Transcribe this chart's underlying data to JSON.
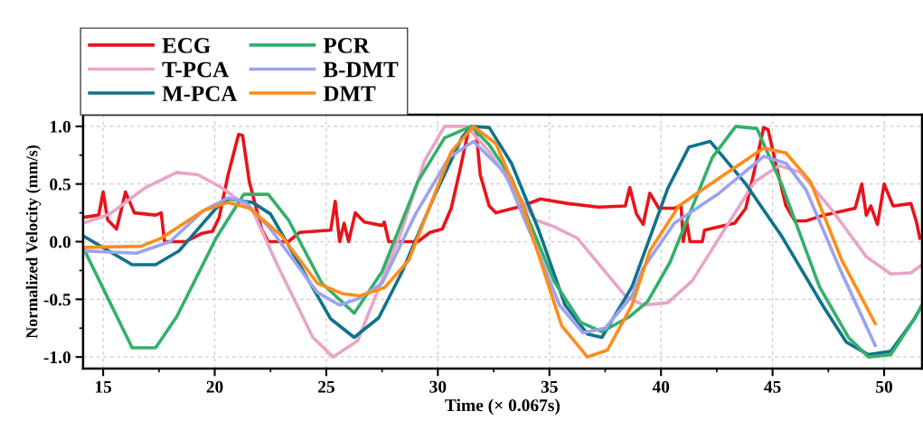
{
  "chart_data": {
    "type": "line",
    "xlabel": "Time (× 0.067s)",
    "ylabel": "Normalized Velocity (mm/s)",
    "xlim": [
      14.1,
      51.7
    ],
    "ylim": [
      -1.1,
      1.1
    ],
    "xticks": [
      15,
      20,
      25,
      30,
      35,
      40,
      45,
      50
    ],
    "yticks": [
      {
        "value": -1,
        "label": "-1.0"
      },
      {
        "value": -0.5,
        "label": "-0.5"
      },
      {
        "value": 0,
        "label": "0.0"
      },
      {
        "value": 0.5,
        "label": "0.5"
      },
      {
        "value": 1,
        "label": "1.0"
      }
    ],
    "grid": true,
    "legend": "top left",
    "line_style": "solid",
    "marker": "none",
    "series": [
      {
        "name": "ECG",
        "color": "#e8141b",
        "x": [
          14.1,
          14.8,
          15.0,
          15.2,
          15.6,
          16.0,
          16.4,
          17.35,
          17.6,
          17.75,
          18.7,
          19.4,
          19.9,
          20.2,
          20.6,
          21.07,
          21.25,
          21.55,
          22.1,
          22.4,
          23.3,
          23.8,
          25.2,
          25.4,
          25.6,
          25.8,
          26.0,
          26.3,
          26.7,
          27.5,
          27.6,
          27.8,
          29.1,
          29.65,
          30.2,
          30.6,
          31.0,
          31.4,
          31.7,
          31.9,
          32.3,
          32.6,
          33.8,
          34.6,
          35.85,
          37.2,
          38.4,
          38.6,
          38.9,
          39.2,
          39.5,
          39.9,
          40.6,
          40.9,
          41.0,
          41.15,
          41.3,
          41.85,
          41.95,
          43.3,
          43.8,
          44.2,
          44.6,
          44.8,
          45.2,
          45.6,
          46.0,
          46.5,
          47.3,
          48.7,
          49.0,
          49.2,
          49.4,
          49.7,
          50.0,
          50.4,
          51.2,
          51.45,
          51.6
        ],
        "values": [
          0.21,
          0.23,
          0.43,
          0.19,
          0.11,
          0.43,
          0.25,
          0.23,
          0.25,
          0.0,
          0.0,
          0.07,
          0.09,
          0.21,
          0.58,
          0.93,
          0.92,
          0.52,
          0.11,
          0.0,
          0.0,
          0.08,
          0.1,
          0.35,
          0.0,
          0.16,
          0.0,
          0.25,
          0.17,
          0.14,
          0.17,
          0.0,
          0.0,
          0.08,
          0.11,
          0.29,
          0.63,
          0.99,
          0.99,
          0.58,
          0.31,
          0.25,
          0.31,
          0.37,
          0.33,
          0.3,
          0.31,
          0.47,
          0.24,
          0.15,
          0.42,
          0.29,
          0.29,
          0.31,
          0.0,
          0.18,
          0.0,
          0.0,
          0.1,
          0.16,
          0.29,
          0.63,
          0.99,
          0.97,
          0.63,
          0.31,
          0.18,
          0.18,
          0.23,
          0.29,
          0.5,
          0.23,
          0.31,
          0.15,
          0.5,
          0.31,
          0.33,
          0.17,
          0.03
        ]
      },
      {
        "name": "T-PCA",
        "color": "#e8a5c8",
        "x": [
          14.1,
          15.3,
          16.9,
          18.3,
          19.25,
          20.3,
          21.7,
          22.8,
          24.4,
          25.3,
          26.4,
          28.3,
          29.4,
          30.3,
          31.3,
          32.3,
          34.35,
          35.2,
          36.25,
          38.4,
          39.2,
          40.3,
          41.4,
          42.6,
          44.2,
          45.3,
          46.25,
          47.6,
          49.2,
          50.3,
          51.2,
          51.7
        ],
        "values": [
          0.16,
          0.24,
          0.47,
          0.6,
          0.58,
          0.47,
          0.27,
          -0.2,
          -0.83,
          -1.0,
          -0.86,
          0.05,
          0.7,
          1.0,
          1.0,
          0.78,
          0.19,
          0.13,
          0.03,
          -0.47,
          -0.55,
          -0.53,
          -0.34,
          0.03,
          0.52,
          0.66,
          0.6,
          0.29,
          -0.13,
          -0.28,
          -0.27,
          -0.2
        ]
      },
      {
        "name": "M-PCA",
        "color": "#11728c",
        "x": [
          14.1,
          16.3,
          17.35,
          18.4,
          20.06,
          20.6,
          21.7,
          22.5,
          25.2,
          26.25,
          27.35,
          28.4,
          29.9,
          31.1,
          31.5,
          32.3,
          33.3,
          34.5,
          35.7,
          36.7,
          37.35,
          38.7,
          40.3,
          41.25,
          42.2,
          43.8,
          45.4,
          47.3,
          48.3,
          49.3,
          50.3,
          51.35,
          51.7
        ],
        "values": [
          0.05,
          -0.2,
          -0.2,
          -0.08,
          0.29,
          0.37,
          0.34,
          0.24,
          -0.67,
          -0.83,
          -0.66,
          -0.26,
          0.42,
          0.91,
          1.0,
          0.99,
          0.68,
          0.11,
          -0.55,
          -0.8,
          -0.83,
          -0.39,
          0.46,
          0.82,
          0.87,
          0.5,
          0.05,
          -0.57,
          -0.87,
          -0.98,
          -0.95,
          -0.67,
          -0.55
        ]
      },
      {
        "name": "PCR",
        "color": "#33b06a",
        "x": [
          14.1,
          16.3,
          17.35,
          18.3,
          20.06,
          21.3,
          22.4,
          23.3,
          24.8,
          26.25,
          27.5,
          29.1,
          30.3,
          31.5,
          32.3,
          33.3,
          35.2,
          36.4,
          37.35,
          38.6,
          39.4,
          40.4,
          42.3,
          43.35,
          44.3,
          45.4,
          47.1,
          48.4,
          49.3,
          50.3,
          51.35,
          51.7
        ],
        "values": [
          -0.05,
          -0.92,
          -0.92,
          -0.65,
          0.03,
          0.41,
          0.41,
          0.19,
          -0.36,
          -0.62,
          -0.26,
          0.52,
          0.9,
          1.0,
          0.84,
          0.55,
          -0.34,
          -0.7,
          -0.78,
          -0.65,
          -0.52,
          -0.18,
          0.73,
          1.0,
          0.98,
          0.5,
          -0.39,
          -0.83,
          -1.0,
          -0.98,
          -0.67,
          -0.55
        ]
      },
      {
        "name": "B-DMT",
        "color": "#9aa3f0",
        "x": [
          14.1,
          16.5,
          18.0,
          19.5,
          20.6,
          21.4,
          22.5,
          24.6,
          25.6,
          26.5,
          27.5,
          29.0,
          30.5,
          31.6,
          33.0,
          34.35,
          35.45,
          36.5,
          37.5,
          38.7,
          39.2,
          40.6,
          42.6,
          44.6,
          45.6,
          46.5,
          48.0,
          49.6
        ],
        "values": [
          -0.08,
          -0.1,
          0.0,
          0.27,
          0.38,
          0.34,
          0.11,
          -0.44,
          -0.55,
          -0.49,
          -0.36,
          0.24,
          0.73,
          0.87,
          0.6,
          -0.02,
          -0.55,
          -0.79,
          -0.75,
          -0.47,
          -0.23,
          0.16,
          0.42,
          0.74,
          0.68,
          0.45,
          -0.23,
          -0.9
        ]
      },
      {
        "name": "DMT",
        "color": "#ff8c1a",
        "x": [
          14.1,
          16.7,
          17.6,
          19.5,
          20.6,
          21.55,
          23.0,
          24.6,
          25.7,
          26.5,
          27.6,
          28.7,
          30.6,
          31.6,
          32.6,
          33.8,
          35.55,
          36.7,
          37.6,
          38.7,
          39.5,
          40.8,
          42.6,
          44.6,
          45.6,
          46.7,
          48.1,
          49.6
        ],
        "values": [
          -0.05,
          -0.04,
          0.03,
          0.27,
          0.34,
          0.29,
          0.05,
          -0.36,
          -0.45,
          -0.47,
          -0.4,
          -0.16,
          0.78,
          1.0,
          0.85,
          0.31,
          -0.73,
          -1.0,
          -0.94,
          -0.55,
          -0.08,
          0.31,
          0.55,
          0.81,
          0.77,
          0.52,
          -0.16,
          -0.71
        ]
      }
    ]
  }
}
